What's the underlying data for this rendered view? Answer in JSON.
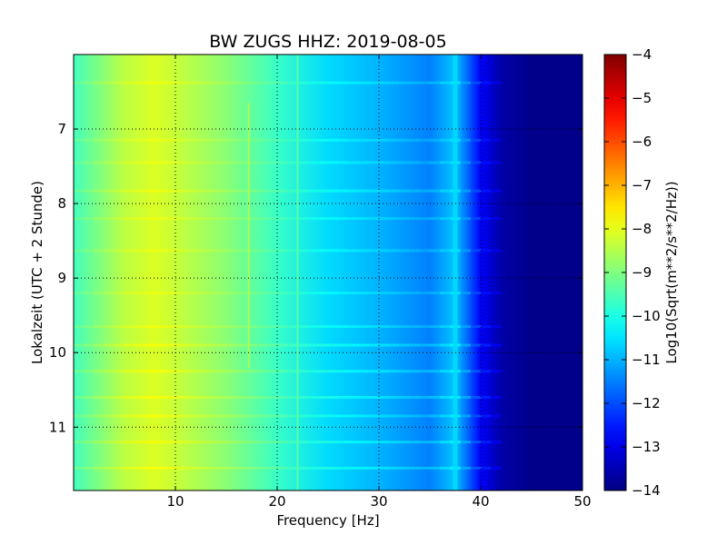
{
  "chart_data": {
    "type": "heatmap",
    "title": "BW ZUGS HHZ: 2019-08-05",
    "xlabel": "Frequency [Hz]",
    "ylabel": "Lokalzeit (UTC + 2 Stunde)",
    "xlim": [
      0,
      50
    ],
    "ylim": [
      6.0,
      11.85
    ],
    "y_inverted": true,
    "x_ticks": [
      10,
      20,
      30,
      40,
      50
    ],
    "y_ticks": [
      7,
      8,
      9,
      10,
      11
    ],
    "grid": true,
    "colormap": "jet",
    "colorbar": {
      "label": "Log10(Sqrt(m**2/s**2/Hz))",
      "range": [
        -14,
        -4
      ],
      "ticks": [
        -4,
        -5,
        -6,
        -7,
        -8,
        -9,
        -10,
        -11,
        -12,
        -13,
        -14
      ],
      "tick_labels": [
        "−4",
        "−5",
        "−6",
        "−7",
        "−8",
        "−9",
        "−10",
        "−11",
        "−12",
        "−13",
        "−14"
      ]
    },
    "frequency_hz": [
      0,
      5,
      8,
      10,
      15,
      20,
      25,
      30,
      35,
      37.5,
      40,
      42,
      45,
      50
    ],
    "log_amplitude": [
      -9.6,
      -8.4,
      -8.1,
      -8.3,
      -8.9,
      -9.7,
      -10.6,
      -11.0,
      -11.5,
      -10.8,
      -12.8,
      -13.6,
      -13.9,
      -13.9
    ],
    "features": [
      {
        "type": "vertical_line",
        "frequency_hz": 37.5,
        "value": -10.6,
        "time_from": 6.0,
        "time_to": 11.85
      },
      {
        "type": "vertical_line",
        "frequency_hz": 17.2,
        "value": -8.5,
        "time_from": 6.65,
        "time_to": 10.2
      },
      {
        "type": "vertical_line",
        "frequency_hz": 22.0,
        "value": -9.3,
        "time_from": 6.0,
        "time_to": 11.85
      }
    ],
    "horizontal_bands": [
      {
        "time": 6.38,
        "value_offset": 0.35
      },
      {
        "time": 7.15,
        "value_offset": 0.3
      },
      {
        "time": 7.45,
        "value_offset": 0.3
      },
      {
        "time": 7.83,
        "value_offset": 0.35
      },
      {
        "time": 8.2,
        "value_offset": 0.3
      },
      {
        "time": 8.63,
        "value_offset": 0.3
      },
      {
        "time": 9.2,
        "value_offset": 0.3
      },
      {
        "time": 9.65,
        "value_offset": 0.35
      },
      {
        "time": 9.9,
        "value_offset": 0.45
      },
      {
        "time": 10.25,
        "value_offset": 0.45
      },
      {
        "time": 10.6,
        "value_offset": 0.45
      },
      {
        "time": 10.85,
        "value_offset": 0.4
      },
      {
        "time": 11.2,
        "value_offset": 0.45
      },
      {
        "time": 11.55,
        "value_offset": 0.45
      }
    ]
  }
}
